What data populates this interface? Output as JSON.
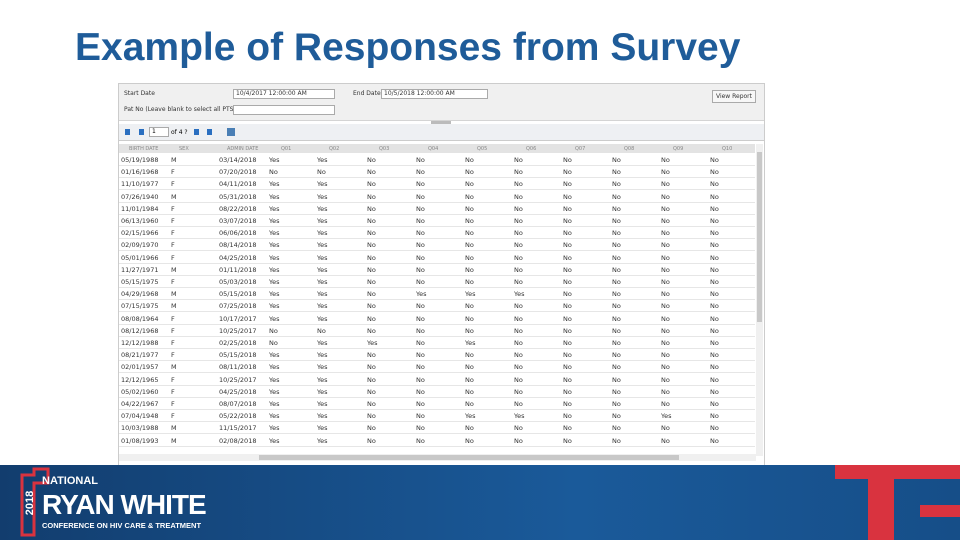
{
  "header": {
    "title": "Example of Responses from Survey"
  },
  "params": {
    "start_label": "Start Date",
    "start_value": "10/4/2017 12:00:00 AM",
    "end_label": "End Date",
    "end_value": "10/5/2018 12:00:00 AM",
    "pat_label": "Pat No (Leave blank to select all PTS)",
    "button": "View Report"
  },
  "toolbar": {
    "page": "1",
    "of": "of 4 ?"
  },
  "table": {
    "columns": [
      "BIRTH DATE",
      "SEX",
      "ADMIN DATE",
      "Q01",
      "Q02",
      "Q03",
      "Q04",
      "Q05",
      "Q06",
      "Q07",
      "Q08",
      "Q09",
      "Q10"
    ],
    "rows": [
      [
        "05/19/1988",
        "M",
        "03/14/2018",
        "Yes",
        "Yes",
        "No",
        "No",
        "No",
        "No",
        "No",
        "No",
        "No",
        "No"
      ],
      [
        "01/16/1968",
        "F",
        "07/20/2018",
        "No",
        "No",
        "No",
        "No",
        "No",
        "No",
        "No",
        "No",
        "No",
        "No"
      ],
      [
        "11/10/1977",
        "F",
        "04/11/2018",
        "Yes",
        "Yes",
        "No",
        "No",
        "No",
        "No",
        "No",
        "No",
        "No",
        "No"
      ],
      [
        "07/26/1940",
        "M",
        "05/31/2018",
        "Yes",
        "Yes",
        "No",
        "No",
        "No",
        "No",
        "No",
        "No",
        "No",
        "No"
      ],
      [
        "11/01/1984",
        "F",
        "08/22/2018",
        "Yes",
        "Yes",
        "No",
        "No",
        "No",
        "No",
        "No",
        "No",
        "No",
        "No"
      ],
      [
        "06/13/1960",
        "F",
        "03/07/2018",
        "Yes",
        "Yes",
        "No",
        "No",
        "No",
        "No",
        "No",
        "No",
        "No",
        "No"
      ],
      [
        "02/15/1966",
        "F",
        "06/06/2018",
        "Yes",
        "Yes",
        "No",
        "No",
        "No",
        "No",
        "No",
        "No",
        "No",
        "No"
      ],
      [
        "02/09/1970",
        "F",
        "08/14/2018",
        "Yes",
        "Yes",
        "No",
        "No",
        "No",
        "No",
        "No",
        "No",
        "No",
        "No"
      ],
      [
        "05/01/1966",
        "F",
        "04/25/2018",
        "Yes",
        "Yes",
        "No",
        "No",
        "No",
        "No",
        "No",
        "No",
        "No",
        "No"
      ],
      [
        "11/27/1971",
        "M",
        "01/11/2018",
        "Yes",
        "Yes",
        "No",
        "No",
        "No",
        "No",
        "No",
        "No",
        "No",
        "No"
      ],
      [
        "05/15/1975",
        "F",
        "05/03/2018",
        "Yes",
        "Yes",
        "No",
        "No",
        "No",
        "No",
        "No",
        "No",
        "No",
        "No"
      ],
      [
        "04/29/1968",
        "M",
        "05/15/2018",
        "Yes",
        "Yes",
        "No",
        "Yes",
        "Yes",
        "Yes",
        "No",
        "No",
        "No",
        "No"
      ],
      [
        "07/15/1975",
        "M",
        "07/25/2018",
        "Yes",
        "Yes",
        "No",
        "No",
        "No",
        "No",
        "No",
        "No",
        "No",
        "No"
      ],
      [
        "08/08/1964",
        "F",
        "10/17/2017",
        "Yes",
        "Yes",
        "No",
        "No",
        "No",
        "No",
        "No",
        "No",
        "No",
        "No"
      ],
      [
        "08/12/1968",
        "F",
        "10/25/2017",
        "No",
        "No",
        "No",
        "No",
        "No",
        "No",
        "No",
        "No",
        "No",
        "No"
      ],
      [
        "12/12/1988",
        "F",
        "02/25/2018",
        "No",
        "Yes",
        "Yes",
        "No",
        "Yes",
        "No",
        "No",
        "No",
        "No",
        "No"
      ],
      [
        "08/21/1977",
        "F",
        "05/15/2018",
        "Yes",
        "Yes",
        "No",
        "No",
        "No",
        "No",
        "No",
        "No",
        "No",
        "No"
      ],
      [
        "02/01/1957",
        "M",
        "08/11/2018",
        "Yes",
        "Yes",
        "No",
        "No",
        "No",
        "No",
        "No",
        "No",
        "No",
        "No"
      ],
      [
        "12/12/1965",
        "F",
        "10/25/2017",
        "Yes",
        "Yes",
        "No",
        "No",
        "No",
        "No",
        "No",
        "No",
        "No",
        "No"
      ],
      [
        "05/02/1960",
        "F",
        "04/25/2018",
        "Yes",
        "Yes",
        "No",
        "No",
        "No",
        "No",
        "No",
        "No",
        "No",
        "No"
      ],
      [
        "04/22/1967",
        "F",
        "08/07/2018",
        "Yes",
        "Yes",
        "No",
        "No",
        "No",
        "No",
        "No",
        "No",
        "No",
        "No"
      ],
      [
        "07/04/1948",
        "F",
        "05/22/2018",
        "Yes",
        "Yes",
        "No",
        "No",
        "Yes",
        "Yes",
        "No",
        "No",
        "Yes",
        "No"
      ],
      [
        "10/03/1988",
        "M",
        "11/15/2017",
        "Yes",
        "Yes",
        "No",
        "No",
        "No",
        "No",
        "No",
        "No",
        "No",
        "No"
      ],
      [
        "01/08/1993",
        "M",
        "02/08/2018",
        "Yes",
        "Yes",
        "No",
        "No",
        "No",
        "No",
        "No",
        "No",
        "No",
        "No"
      ]
    ]
  },
  "footer": {
    "year": "2018",
    "national": "NATIONAL",
    "name": "RYAN WHITE",
    "tagline": "CONFERENCE ON HIV CARE & TREATMENT"
  }
}
